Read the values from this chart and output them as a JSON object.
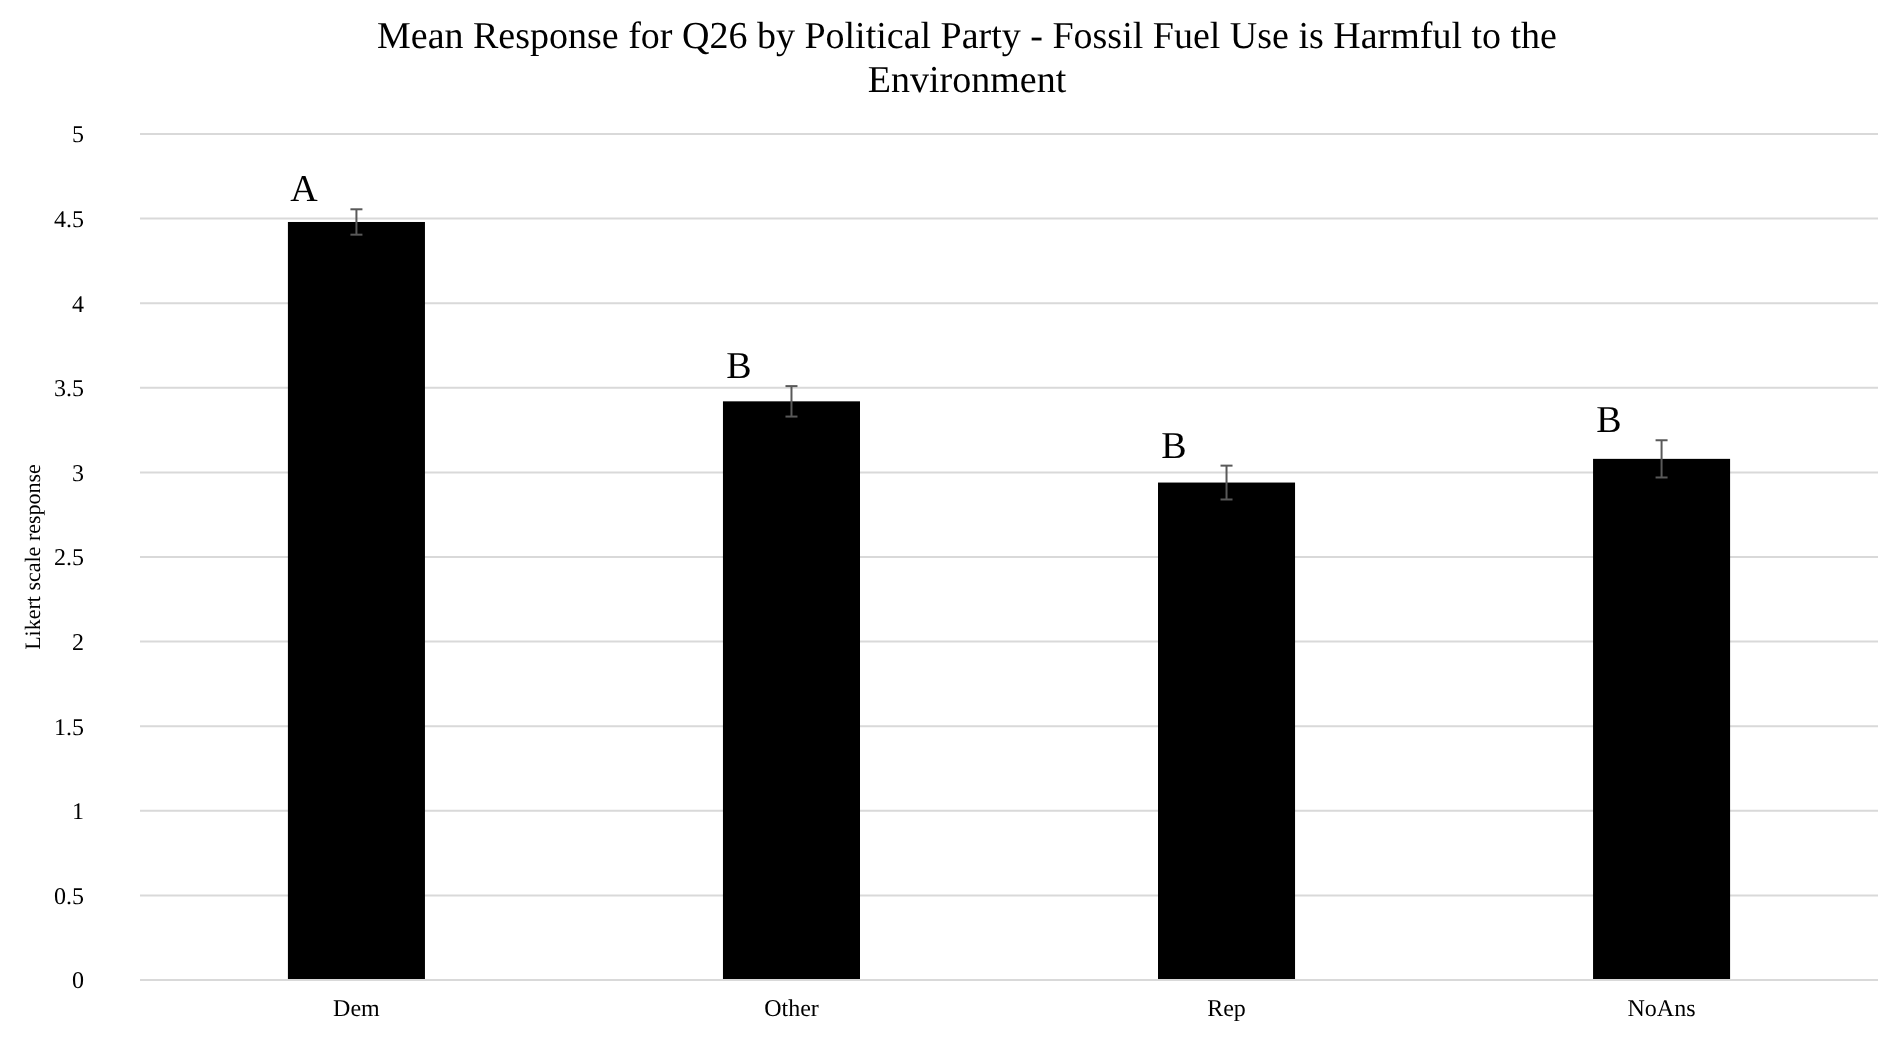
{
  "chart_data": {
    "type": "bar",
    "title": "Mean Response for Q26 by Political Party - Fossil Fuel Use is Harmful to the Environment",
    "ylabel": "Likert scale response",
    "categories": [
      "Dem",
      "Other",
      "Rep",
      "NoAns"
    ],
    "values": [
      4.48,
      3.42,
      2.94,
      3.08
    ],
    "errors": [
      0.075,
      0.09,
      0.1,
      0.11
    ],
    "color": "#000000",
    "ylim": [
      0,
      5
    ],
    "yticks": [
      0,
      0.5,
      1,
      1.5,
      2,
      2.5,
      3,
      3.5,
      4,
      4.5,
      5
    ],
    "grid": "y",
    "annotations": [
      {
        "text": "A",
        "x": "Dem",
        "y": 4.48
      },
      {
        "text": "B",
        "x": "Other",
        "y": 3.42
      },
      {
        "text": "B",
        "x": "Rep",
        "y": 2.94
      },
      {
        "text": "B",
        "x": "NoAns",
        "y": 3.08
      }
    ]
  }
}
